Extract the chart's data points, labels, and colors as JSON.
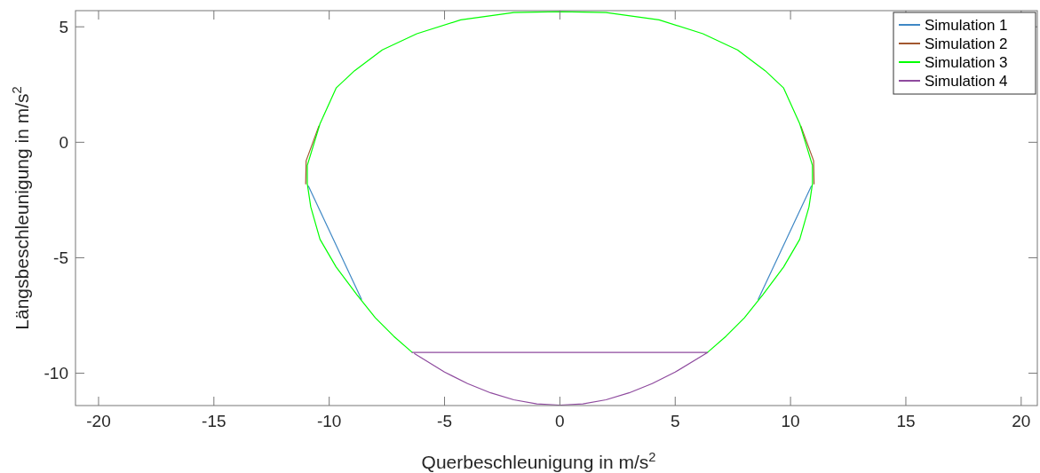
{
  "chart_data": {
    "type": "line",
    "xlabel": "Querbeschleunigung in m/s$^{2}$",
    "ylabel": "Längsbeschleunigung in m/s$^{2}$",
    "xlim": [
      -21,
      20.7
    ],
    "ylim": [
      -11.4,
      5.7
    ],
    "xticks": [
      -20,
      -15,
      -10,
      -5,
      0,
      5,
      10,
      15,
      20
    ],
    "yticks": [
      -10,
      -5,
      0,
      5
    ],
    "grid": false,
    "legend": "top right",
    "line_style": "solid",
    "marker": "none",
    "series": [
      {
        "name": "Simulation 1",
        "color": "#3f88c5",
        "x": [
          -8.6,
          -10.9,
          null,
          10.9,
          8.6
        ],
        "values": [
          -6.8,
          -1.9,
          null,
          -1.9,
          -6.8
        ]
      },
      {
        "name": "Simulation 2",
        "color": "#a2572f",
        "x": [
          -11.02,
          -11.0,
          -10.45,
          null,
          10.45,
          11.0,
          11.02
        ],
        "values": [
          -1.8,
          -0.8,
          0.7,
          null,
          0.7,
          -0.8,
          -1.8
        ]
      },
      {
        "name": "Simulation 3",
        "color": "#00ff00",
        "x": [
          -6.4,
          -7.2,
          -8.0,
          -8.8,
          -9.7,
          -10.4,
          -10.8,
          -10.95,
          -10.95,
          -10.4,
          -9.7,
          -8.9,
          -7.7,
          -6.2,
          -4.3,
          -2,
          0,
          2,
          4.3,
          6.2,
          7.7,
          8.9,
          9.7,
          10.4,
          10.95,
          10.95,
          10.8,
          10.4,
          9.7,
          8.8,
          8.0,
          7.2,
          6.4
        ],
        "values": [
          -9.1,
          -8.4,
          -7.6,
          -6.6,
          -5.4,
          -4.2,
          -2.8,
          -1.8,
          -1.0,
          0.8,
          2.35,
          3.1,
          4.0,
          4.7,
          5.3,
          5.62,
          5.66,
          5.62,
          5.3,
          4.7,
          4.0,
          3.1,
          2.35,
          0.8,
          -1.0,
          -1.8,
          -2.8,
          -4.2,
          -5.4,
          -6.6,
          -7.6,
          -8.4,
          -9.1
        ]
      },
      {
        "name": "Simulation 4",
        "color": "#8e4a9e",
        "x": [
          -6.4,
          6.4,
          5,
          4,
          3,
          2,
          1,
          0,
          -1,
          -2,
          -3,
          -4,
          -5,
          -6.3
        ],
        "values": [
          -9.1,
          -9.1,
          -9.95,
          -10.45,
          -10.85,
          -11.15,
          -11.33,
          -11.38,
          -11.33,
          -11.15,
          -10.85,
          -10.45,
          -9.95,
          -9.15
        ]
      }
    ]
  }
}
